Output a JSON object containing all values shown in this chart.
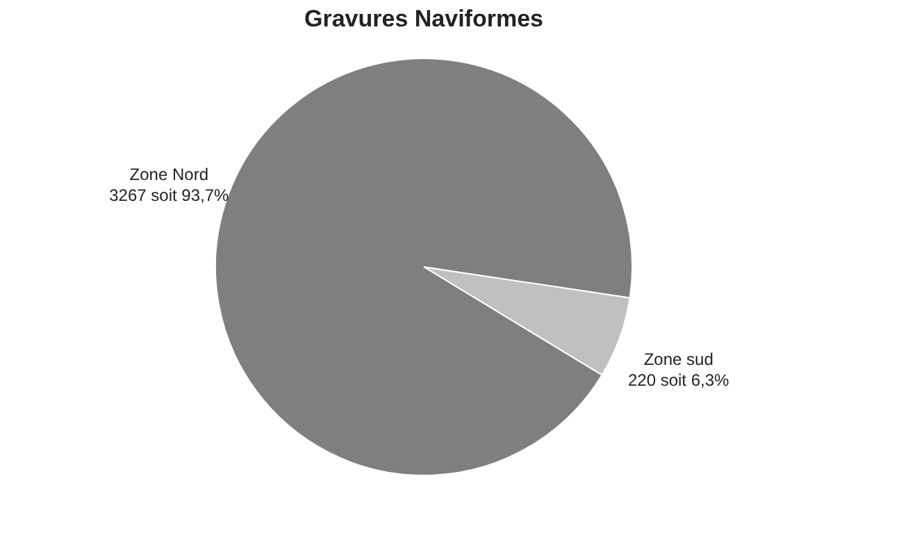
{
  "chart_data": {
    "type": "pie",
    "title": "Gravures Naviformes",
    "categories": [
      "Zone sud",
      "Zone Nord"
    ],
    "values": [
      220,
      3267
    ],
    "colors": [
      "#c0c0c0",
      "#7f7f7f"
    ],
    "value_labels": [
      "220 soit 6,3%",
      "3267 soit 93,7%"
    ]
  }
}
